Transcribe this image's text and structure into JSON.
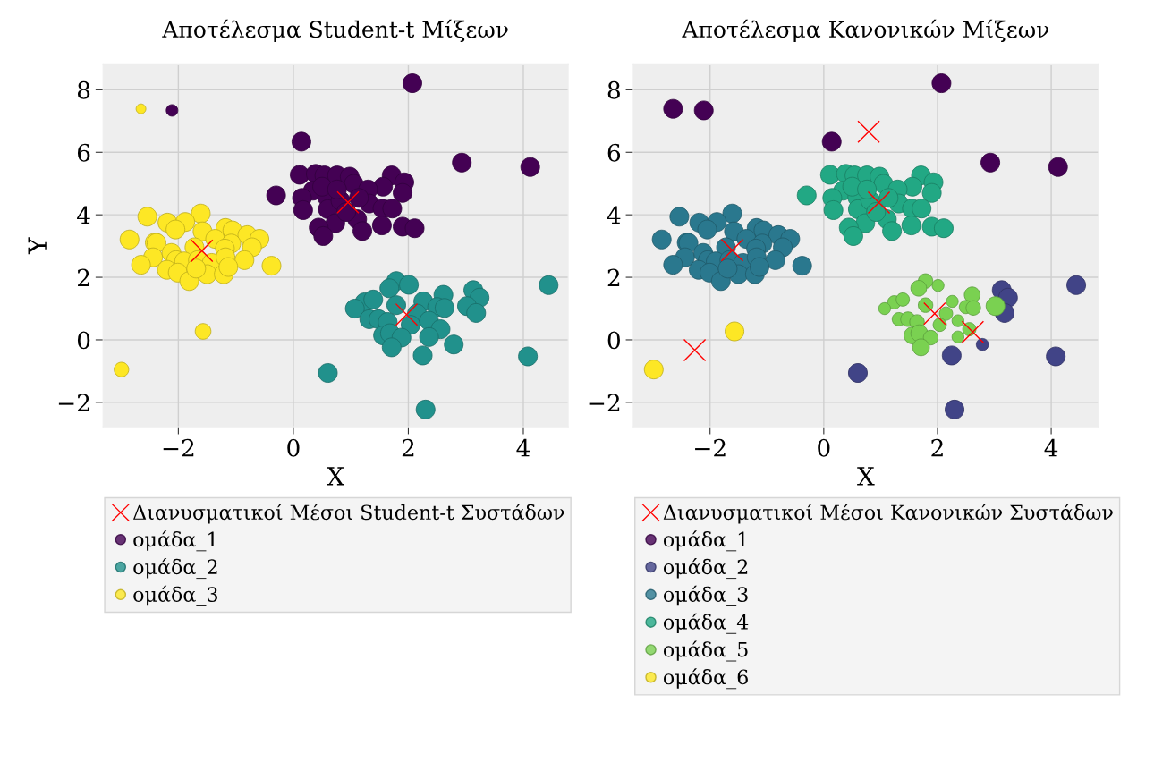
{
  "chart_data": [
    {
      "type": "bubble",
      "title": "Αποτέλεσμα Student-t Μίξεων",
      "xlabel": "X",
      "ylabel": "Y",
      "xlim": [
        -3.31,
        4.78
      ],
      "ylim": [
        -2.78,
        8.8
      ],
      "xticks": [
        {
          "value": -2,
          "label": "−2"
        },
        0,
        2,
        4
      ],
      "yticks": [
        {
          "value": -2,
          "label": "−2"
        },
        0,
        2,
        4,
        6,
        8
      ],
      "grid": true,
      "legend": "bottom",
      "series": [
        {
          "name": "Διανυσματικοί Μέσοι Student-t Συστάδων",
          "type": "scatter",
          "marker": "cross",
          "color": "#ff0000",
          "x": [
            0.95,
            -1.59,
            1.97
          ],
          "values": [
            4.4,
            2.85,
            0.81
          ]
        },
        {
          "name": "ομάδα_1",
          "color": "#440154",
          "x": [
            0.11,
            0.39,
            0.54,
            0.76,
            0.98,
            1.05,
            1.71,
            1.93,
            1.56,
            1.9,
            0.34,
            0.15,
            0.59,
            1.3,
            1.32,
            1.55,
            1.72,
            0.17,
            0.6,
            1.11,
            0.73,
            0.44,
            0.52,
            1.2,
            1.54,
            1.9,
            2.11,
            0.82,
            0.92,
            1.14,
            0.5,
            0.76,
            2.07,
            0.14,
            2.93,
            4.12,
            -0.3,
            -2.11
          ],
          "values": [
            5.28,
            5.31,
            5.26,
            5.26,
            5.22,
            4.99,
            5.26,
            5.04,
            4.9,
            4.7,
            4.77,
            4.54,
            4.56,
            4.81,
            4.36,
            4.2,
            4.2,
            4.15,
            4.18,
            3.86,
            3.73,
            3.59,
            3.32,
            3.48,
            3.66,
            3.62,
            3.57,
            4.45,
            4.09,
            4.54,
            4.9,
            4.81,
            8.21,
            6.34,
            5.67,
            5.53,
            4.62,
            7.34
          ],
          "sizes": [
            1,
            1,
            1,
            1,
            1,
            1,
            1,
            1,
            1,
            1,
            1,
            1,
            1,
            1,
            1,
            1,
            1,
            1,
            1,
            1,
            1,
            1,
            1,
            1,
            1,
            1,
            1,
            1,
            1,
            1,
            1,
            1,
            1,
            1,
            1,
            1,
            1,
            0.38
          ]
        },
        {
          "name": "ομάδα_2",
          "color": "#21918c",
          "x": [
            1.79,
            2.01,
            1.67,
            3.13,
            3.24,
            2.61,
            4.44,
            1.24,
            1.39,
            1.07,
            1.79,
            2.26,
            2.5,
            2.63,
            3.02,
            3.18,
            2.15,
            1.32,
            1.48,
            1.64,
            2.04,
            2.36,
            2.56,
            1.56,
            1.68,
            1.88,
            2.36,
            2.79,
            1.71,
            2.25,
            4.08,
            0.6,
            2.3
          ],
          "values": [
            1.88,
            1.76,
            1.65,
            1.59,
            1.35,
            1.44,
            1.75,
            1.2,
            1.29,
            1.0,
            1.11,
            1.23,
            1.05,
            1.02,
            1.08,
            0.86,
            0.84,
            0.66,
            0.66,
            0.57,
            0.48,
            0.61,
            0.34,
            0.14,
            0.21,
            0.07,
            0.09,
            -0.15,
            -0.24,
            -0.5,
            -0.53,
            -1.06,
            -2.23
          ],
          "sizes": [
            1,
            1,
            1,
            1,
            1,
            1,
            1,
            1,
            1,
            1,
            1,
            1,
            1,
            1,
            1,
            1,
            1,
            1,
            1,
            1,
            1,
            1,
            1,
            1,
            1,
            1,
            1,
            1,
            1,
            1,
            1,
            1,
            1
          ]
        },
        {
          "name": "ομάδα_3",
          "color": "#fde725",
          "x": [
            -2.54,
            -1.61,
            -2.19,
            -1.88,
            -2.05,
            -1.58,
            -1.18,
            -1.06,
            -0.8,
            -0.59,
            -2.85,
            -2.41,
            -2.38,
            -1.36,
            -1.08,
            -0.72,
            -1.19,
            -1.72,
            -2.44,
            -2.12,
            -2.04,
            -2.65,
            -1.9,
            -1.66,
            -1.42,
            -1.18,
            -0.85,
            -0.38,
            -2.2,
            -2.01,
            -1.5,
            -1.21,
            -1.13,
            -1.81,
            -1.69,
            -1.57,
            -2.99,
            -2.65
          ],
          "values": [
            3.94,
            4.04,
            3.75,
            3.77,
            3.53,
            3.47,
            3.58,
            3.5,
            3.35,
            3.23,
            3.21,
            3.11,
            3.1,
            3.23,
            3.08,
            2.96,
            2.92,
            2.96,
            2.64,
            2.78,
            2.55,
            2.4,
            2.51,
            2.55,
            2.46,
            2.64,
            2.55,
            2.37,
            2.24,
            2.15,
            2.1,
            2.1,
            2.33,
            1.88,
            2.28,
            0.27,
            -0.95,
            7.39
          ],
          "sizes": [
            1,
            1,
            1,
            1,
            1,
            1,
            1,
            1,
            1,
            1,
            1,
            1,
            1,
            1,
            1,
            1,
            1,
            1,
            1,
            1,
            1,
            1,
            1,
            1,
            1,
            1,
            1,
            1,
            1,
            1,
            1,
            1,
            1,
            1,
            1,
            0.7,
            0.6,
            0.27
          ]
        }
      ]
    },
    {
      "type": "bubble",
      "title": "Αποτέλεσμα Κανονικών Μίξεων",
      "xlabel": "X",
      "xlim": [
        -3.35,
        4.83
      ],
      "ylim": [
        -2.78,
        8.8
      ],
      "xticks": [
        {
          "value": -2,
          "label": "−2"
        },
        0,
        2,
        4
      ],
      "yticks": [
        {
          "value": -2,
          "label": "−2"
        },
        0,
        2,
        4,
        6,
        8
      ],
      "grid": true,
      "legend": "bottom",
      "series": [
        {
          "name": "Διανυσματικοί Μέσοι Κανονικών Συστάδων",
          "type": "scatter",
          "marker": "cross",
          "color": "#ff0000",
          "x": [
            0.79,
            0.97,
            -1.61,
            1.95,
            2.62,
            -2.27
          ],
          "values": [
            6.66,
            4.39,
            2.87,
            0.84,
            0.25,
            -0.33
          ]
        },
        {
          "name": "ομάδα_1",
          "color": "#440154",
          "x": [
            2.07,
            0.14,
            2.93,
            4.12,
            -2.11,
            -2.65
          ],
          "values": [
            8.21,
            6.34,
            5.67,
            5.53,
            7.34,
            7.39
          ],
          "sizes": [
            1,
            1,
            1,
            1,
            1,
            1
          ]
        },
        {
          "name": "ομάδα_2",
          "color": "#414487",
          "x": [
            4.44,
            4.08,
            0.6,
            2.3,
            2.25,
            3.13,
            3.24,
            3.18,
            2.79
          ],
          "values": [
            1.75,
            -0.53,
            -1.06,
            -2.23,
            -0.5,
            1.59,
            1.35,
            0.86,
            -0.15
          ],
          "sizes": [
            1,
            1,
            1,
            1,
            1,
            1,
            1,
            1,
            0.42
          ]
        },
        {
          "name": "ομάδα_3",
          "color": "#2a788e",
          "x": [
            -2.54,
            -1.61,
            -2.19,
            -1.88,
            -2.05,
            -1.58,
            -1.18,
            -1.06,
            -0.8,
            -0.59,
            -2.85,
            -2.41,
            -2.38,
            -1.36,
            -1.08,
            -0.72,
            -1.19,
            -1.72,
            -2.44,
            -2.12,
            -2.04,
            -2.65,
            -1.9,
            -1.66,
            -1.42,
            -1.18,
            -0.85,
            -0.38,
            -2.2,
            -2.01,
            -1.5,
            -1.21,
            -1.13,
            -1.81,
            -1.69
          ],
          "values": [
            3.94,
            4.04,
            3.75,
            3.77,
            3.53,
            3.47,
            3.58,
            3.5,
            3.35,
            3.23,
            3.21,
            3.11,
            3.1,
            3.23,
            3.08,
            2.96,
            2.92,
            2.96,
            2.64,
            2.78,
            2.55,
            2.4,
            2.51,
            2.55,
            2.46,
            2.64,
            2.55,
            2.37,
            2.24,
            2.15,
            2.1,
            2.1,
            2.33,
            1.88,
            2.28
          ],
          "sizes": [
            1,
            1,
            1,
            1,
            1,
            1,
            1,
            1,
            1,
            1,
            1,
            1,
            1,
            1,
            1,
            1,
            1,
            1,
            1,
            1,
            1,
            1,
            1,
            1,
            1,
            1,
            1,
            1,
            1,
            1,
            1,
            1,
            1,
            1,
            1
          ]
        },
        {
          "name": "ομάδα_4",
          "color": "#22a884",
          "x": [
            0.11,
            0.39,
            0.54,
            0.76,
            0.98,
            1.05,
            1.71,
            1.93,
            1.56,
            1.9,
            0.34,
            0.15,
            0.59,
            1.3,
            1.32,
            1.55,
            1.72,
            0.17,
            0.6,
            1.11,
            0.73,
            0.44,
            0.52,
            1.2,
            1.54,
            1.9,
            2.11,
            0.82,
            0.92,
            1.14,
            0.5,
            0.76,
            -0.3
          ],
          "values": [
            5.28,
            5.31,
            5.26,
            5.26,
            5.22,
            4.99,
            5.26,
            5.04,
            4.9,
            4.7,
            4.77,
            4.54,
            4.56,
            4.81,
            4.36,
            4.2,
            4.2,
            4.15,
            4.18,
            3.86,
            3.73,
            3.59,
            3.32,
            3.48,
            3.66,
            3.62,
            3.57,
            4.45,
            4.09,
            4.54,
            4.9,
            4.81,
            4.62
          ],
          "sizes": [
            1,
            1,
            1,
            1,
            1,
            1,
            1,
            1,
            1,
            1,
            1,
            1,
            1,
            1,
            1,
            1,
            1,
            1,
            1,
            1,
            1,
            1,
            1,
            1,
            1,
            1,
            1,
            1,
            1,
            1,
            1,
            1,
            1
          ]
        },
        {
          "name": "ομάδα_5",
          "color": "#7ad151",
          "x": [
            1.79,
            2.01,
            1.67,
            2.61,
            1.24,
            1.39,
            1.07,
            1.79,
            2.26,
            2.5,
            2.63,
            3.02,
            2.15,
            1.32,
            1.48,
            1.64,
            2.04,
            2.36,
            2.56,
            1.56,
            1.68,
            1.88,
            2.36,
            1.71
          ],
          "values": [
            1.88,
            1.74,
            1.65,
            1.44,
            1.2,
            1.29,
            1.0,
            1.11,
            1.23,
            1.05,
            1.02,
            1.08,
            0.84,
            0.66,
            0.66,
            0.57,
            0.48,
            0.61,
            0.34,
            0.14,
            0.21,
            0.07,
            0.09,
            -0.24
          ],
          "sizes": [
            0.6,
            0.4,
            0.7,
            0.7,
            0.5,
            0.5,
            0.4,
            0.6,
            0.4,
            0.5,
            0.6,
            1,
            0.5,
            0.5,
            0.6,
            0.6,
            0.5,
            0.4,
            0.5,
            0.8,
            0.8,
            0.6,
            0.4,
            0.8
          ]
        },
        {
          "name": "ομάδα_6",
          "color": "#fde725",
          "x": [
            -1.57,
            -2.99
          ],
          "values": [
            0.27,
            -0.95
          ],
          "sizes": [
            1,
            1
          ]
        }
      ]
    }
  ]
}
